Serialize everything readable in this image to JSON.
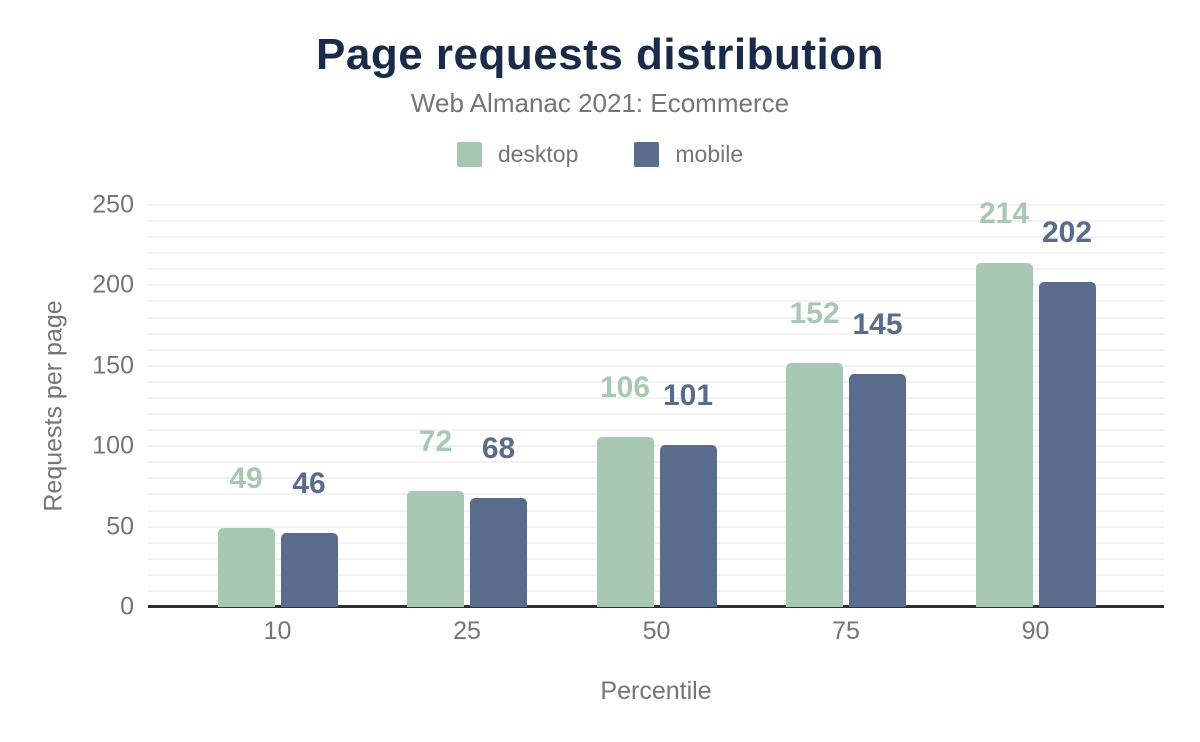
{
  "chart_data": {
    "type": "bar",
    "title": "Page requests distribution",
    "subtitle": "Web Almanac 2021: Ecommerce",
    "categories": [
      "10",
      "25",
      "50",
      "75",
      "90"
    ],
    "series": [
      {
        "name": "desktop",
        "color": "#a8c8b4",
        "values": [
          49,
          72,
          106,
          152,
          214
        ]
      },
      {
        "name": "mobile",
        "color": "#5a6c8c",
        "values": [
          46,
          68,
          101,
          145,
          202
        ]
      }
    ],
    "xlabel": "Percentile",
    "ylabel": "Requests per page",
    "ylim": [
      0,
      250
    ],
    "y_ticks": [
      0,
      50,
      100,
      150,
      200,
      250
    ],
    "minor_grid_step": 10,
    "grid": true,
    "legend_position": "top",
    "data_labels": true
  },
  "colors": {
    "title": "#1a2b4a",
    "text_gray": "#757575",
    "gridline": "#f2f2f2",
    "axis_line": "#2f2f2f",
    "background": "#ffffff"
  }
}
